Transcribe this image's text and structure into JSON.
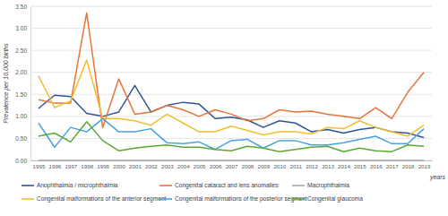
{
  "chart_data": {
    "type": "line",
    "y_label": "Prevalence per 10,000 births",
    "x_label": "years",
    "categories": [
      "1995",
      "1996",
      "1997",
      "1998",
      "1999",
      "2000",
      "2001",
      "2002",
      "2003",
      "2004",
      "2005",
      "2006",
      "2007",
      "2008",
      "2009",
      "2010",
      "2011",
      "2012",
      "2013",
      "2014",
      "2015",
      "2016",
      "2017",
      "2018",
      "2019"
    ],
    "ylim": [
      0,
      3.5
    ],
    "yticks": [
      {
        "value": 0,
        "label": "0.00"
      },
      {
        "value": 0.5,
        "label": "0.50"
      },
      {
        "value": 1,
        "label": "1.00"
      },
      {
        "value": 1.5,
        "label": "1.50"
      },
      {
        "value": 2,
        "label": "2.00"
      },
      {
        "value": 2.5,
        "label": "2.50"
      },
      {
        "value": 3,
        "label": "3.00"
      },
      {
        "value": 3.5,
        "label": "3.50"
      }
    ],
    "grid": true,
    "legend": "bottom",
    "series": [
      {
        "name": "Anophthalmia / microphthalmia",
        "color": "#2e5597",
        "values": [
          1.18,
          1.48,
          1.45,
          1.07,
          1.0,
          1.1,
          1.7,
          1.1,
          1.25,
          1.32,
          1.28,
          0.95,
          0.98,
          0.92,
          0.75,
          0.9,
          0.85,
          0.65,
          0.7,
          0.62,
          0.7,
          0.75,
          0.65,
          0.62,
          0.52
        ]
      },
      {
        "name": "Congenital cataract and lens anomalies",
        "color": "#e8743b",
        "values": [
          1.38,
          1.3,
          1.3,
          3.35,
          0.75,
          1.85,
          1.05,
          1.1,
          1.25,
          1.15,
          1.0,
          1.15,
          1.05,
          0.9,
          0.95,
          1.15,
          1.1,
          1.12,
          1.05,
          1.0,
          0.95,
          1.2,
          0.95,
          1.55,
          2.0
        ]
      },
      {
        "name": "Macrophthalmia",
        "color": "#a5a5a5",
        "values": [
          0,
          0,
          0,
          0,
          0,
          0,
          0,
          0,
          0,
          0,
          0,
          0,
          0,
          0,
          0,
          0,
          0,
          0,
          0,
          0,
          0,
          0,
          0,
          0,
          0
        ]
      },
      {
        "name": "Congenital malformations of the anterior segment",
        "color": "#f2be2e",
        "values": [
          1.92,
          1.2,
          1.35,
          2.28,
          0.95,
          0.95,
          0.9,
          0.8,
          1.05,
          0.85,
          0.65,
          0.65,
          0.78,
          0.68,
          0.58,
          0.65,
          0.65,
          0.6,
          0.75,
          0.72,
          0.9,
          0.75,
          0.65,
          0.55,
          0.8
        ]
      },
      {
        "name": "Congenital malformations of the posterior segment",
        "color": "#4aa3df",
        "values": [
          0.85,
          0.3,
          0.75,
          0.65,
          0.95,
          0.65,
          0.65,
          0.72,
          0.4,
          0.38,
          0.42,
          0.25,
          0.45,
          0.48,
          0.28,
          0.45,
          0.45,
          0.35,
          0.35,
          0.4,
          0.48,
          0.55,
          0.38,
          0.38,
          0.72
        ]
      },
      {
        "name": "Congenital glaucoma",
        "color": "#5aa832",
        "values": [
          0.55,
          0.62,
          0.42,
          0.88,
          0.45,
          0.22,
          0.28,
          0.32,
          0.35,
          0.3,
          0.3,
          0.25,
          0.22,
          0.32,
          0.28,
          0.2,
          0.25,
          0.3,
          0.32,
          0.2,
          0.28,
          0.22,
          0.2,
          0.35,
          0.32
        ]
      }
    ]
  }
}
